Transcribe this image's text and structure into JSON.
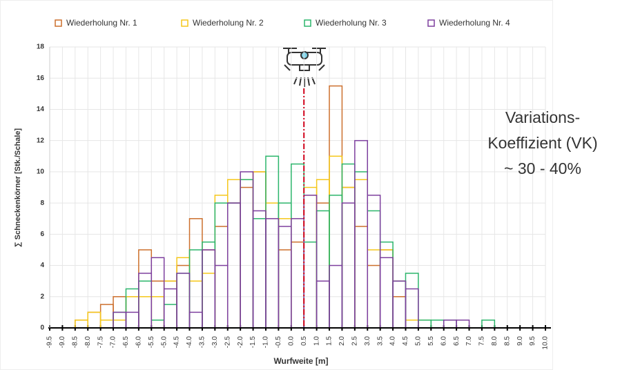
{
  "chart_data": {
    "type": "histogram",
    "xlabel": "Wurfweite [m]",
    "ylabel": "∑ Schneckenkörner [Stk./Schale]",
    "bins": [
      -9.5,
      -9,
      -8.5,
      -8,
      -7.5,
      -7,
      -6.5,
      -6,
      -5.5,
      -5,
      -4.5,
      -4,
      -3.5,
      -3,
      -2.5,
      -2,
      -1.5,
      -1,
      -0.5,
      0,
      0.5,
      1,
      1.5,
      2,
      2.5,
      3,
      3.5,
      4,
      4.5,
      5,
      5.5,
      6,
      6.5,
      7,
      7.5,
      8,
      8.5,
      9,
      9.5,
      10
    ],
    "series": [
      {
        "name": "Wiederholung Nr. 1",
        "color": "#cc6f2c",
        "values": [
          0,
          0,
          0.5,
          1,
          1.5,
          2,
          2,
          5,
          3,
          3,
          4,
          7,
          5,
          6.5,
          8,
          9,
          10,
          7,
          5,
          5.5,
          8.5,
          8,
          15.5,
          9,
          6.5,
          4,
          5,
          2,
          0,
          0,
          0,
          0,
          0,
          0,
          0,
          0,
          0,
          0,
          0
        ]
      },
      {
        "name": "Wiederholung Nr. 2",
        "color": "#f5c71a",
        "values": [
          0,
          0,
          0.5,
          1,
          0.5,
          0.5,
          2,
          2,
          2,
          3,
          4.5,
          3,
          3.5,
          8.5,
          9.5,
          9.5,
          10,
          8,
          7,
          7,
          9,
          9.5,
          11,
          9,
          9.5,
          5,
          5,
          3,
          0.5,
          0.5,
          0,
          0,
          0,
          0,
          0,
          0,
          0,
          0,
          0
        ]
      },
      {
        "name": "Wiederholung Nr. 3",
        "color": "#2bb56b",
        "values": [
          0,
          0,
          0,
          0,
          0,
          1,
          2.5,
          3,
          0.5,
          1.5,
          3.5,
          5,
          5.5,
          8,
          8,
          9.5,
          7,
          11,
          8,
          10.5,
          5.5,
          7.5,
          8.5,
          10.5,
          10,
          7.5,
          5.5,
          3,
          3.5,
          0.5,
          0.5,
          0.5,
          0,
          0,
          0.5,
          0,
          0,
          0,
          0
        ]
      },
      {
        "name": "Wiederholung Nr. 4",
        "color": "#7d3f9e",
        "values": [
          0,
          0,
          0,
          0,
          0,
          1,
          1,
          3.5,
          4.5,
          2.5,
          3.5,
          1,
          5,
          4,
          8,
          10,
          7.5,
          7,
          6.5,
          7,
          8.5,
          3,
          4,
          8,
          12,
          8.5,
          4.5,
          3,
          2.5,
          0,
          0,
          0.5,
          0.5,
          0,
          0,
          0,
          0,
          0,
          0
        ]
      }
    ],
    "xlim": [
      -9.5,
      10
    ],
    "xticks": [
      -9.5,
      {
        "value": -9,
        "label": "-9.0"
      },
      -8.5,
      {
        "value": -8,
        "label": "-8.0"
      },
      -7.5,
      {
        "value": -7,
        "label": "-7.0"
      },
      -6.5,
      {
        "value": -6,
        "label": "-6.0"
      },
      -5.5,
      {
        "value": -5,
        "label": "-5.0"
      },
      -4.5,
      {
        "value": -4,
        "label": "-4.0"
      },
      -3.5,
      {
        "value": -3,
        "label": "-3.0"
      },
      -2.5,
      {
        "value": -2,
        "label": "-2.0"
      },
      -1.5,
      {
        "value": -1,
        "label": "-1.0"
      },
      -0.5,
      {
        "value": 0,
        "label": "0.0"
      },
      0.5,
      {
        "value": 1,
        "label": "1.0"
      },
      1.5,
      {
        "value": 2,
        "label": "2.0"
      },
      2.5,
      {
        "value": 3,
        "label": "3.0"
      },
      3.5,
      {
        "value": 4,
        "label": "4.0"
      },
      4.5,
      {
        "value": 5,
        "label": "5.0"
      },
      5.5,
      {
        "value": 6,
        "label": "6.0"
      },
      6.5,
      {
        "value": 7,
        "label": "7.0"
      },
      7.5,
      {
        "value": 8,
        "label": "8.0"
      },
      8.5,
      {
        "value": 9,
        "label": "9.0"
      },
      9.5,
      {
        "value": 10,
        "label": "10.0"
      }
    ],
    "ylim": [
      0,
      18
    ],
    "yticks": [
      0,
      2,
      4,
      6,
      8,
      10,
      12,
      14,
      16,
      18
    ],
    "grid": true,
    "reference_line_x": 0.5,
    "annotation": [
      "Variations-",
      "Koeffizient (VK)",
      "~ 30 - 40%"
    ]
  }
}
